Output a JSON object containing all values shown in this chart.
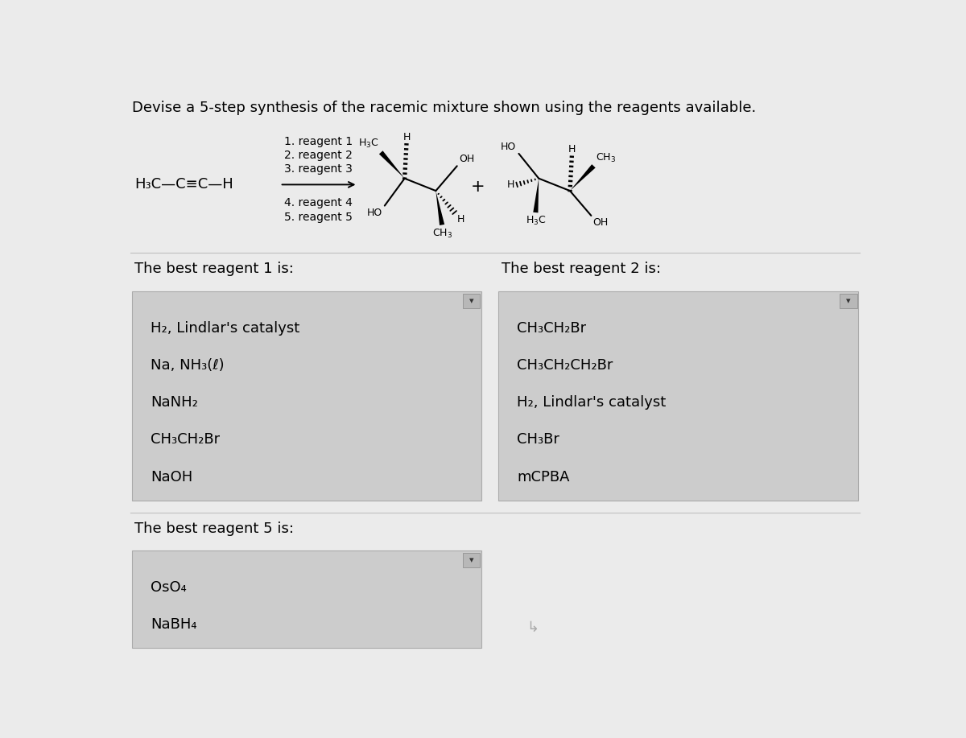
{
  "title": "Devise a 5-step synthesis of the racemic mixture shown using the reagents available.",
  "background_color": "#ebebeb",
  "box_bg_color": "#cccccc",
  "box_border_color": "#aaaaaa",
  "font_color": "#000000",
  "reagent_labels_above": [
    "1. reagent 1",
    "2. reagent 2",
    "3. reagent 3"
  ],
  "reagent_labels_below": [
    "4. reagent 4",
    "5. reagent 5"
  ],
  "section1_label": "The best reagent 1 is:",
  "section2_label": "The best reagent 2 is:",
  "section3_label": "The best reagent 5 is:",
  "box1_items": [
    "H₂, Lindlar's catalyst",
    "Na, NH₃(ℓ)",
    "NaNH₂",
    "CH₃CH₂Br",
    "NaOH"
  ],
  "box2_items": [
    "CH₃CH₂Br",
    "CH₃CH₂CH₂Br",
    "H₂, Lindlar's catalyst",
    "CH₃Br",
    "mCPBA"
  ],
  "box3_items": [
    "OsO₄",
    "NaBH₄"
  ],
  "starting_material": "H₃C—C≡C—H",
  "title_fontsize": 13,
  "reagent_fontsize": 10,
  "item_fontsize": 13,
  "section_label_fontsize": 13,
  "mol_label_fontsize": 9
}
